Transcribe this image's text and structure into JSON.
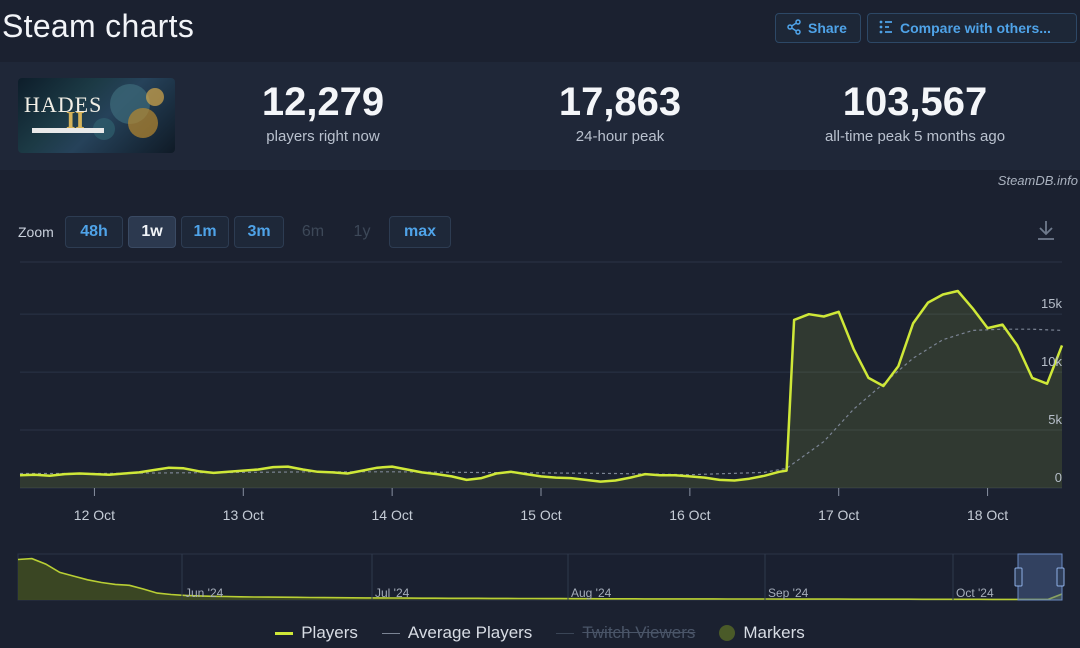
{
  "page_title": "Steam charts",
  "top_buttons": {
    "share": "Share",
    "compare": "Compare with others..."
  },
  "game": {
    "logo_text": "HADES",
    "numeral": "II"
  },
  "stats": [
    {
      "value": "12,279",
      "label": "players right now"
    },
    {
      "value": "17,863",
      "label": "24-hour peak"
    },
    {
      "value": "103,567",
      "label": "all-time peak 5 months ago"
    }
  ],
  "credit": "SteamDB.info",
  "zoom": {
    "label": "Zoom",
    "options": [
      {
        "label": "48h",
        "state": "enabled"
      },
      {
        "label": "1w",
        "state": "active"
      },
      {
        "label": "1m",
        "state": "enabled"
      },
      {
        "label": "3m",
        "state": "enabled"
      },
      {
        "label": "6m",
        "state": "disabled"
      },
      {
        "label": "1y",
        "state": "disabled"
      },
      {
        "label": "max",
        "state": "enabled"
      }
    ]
  },
  "icons": {
    "share": "share-icon",
    "compare": "compare-icon",
    "download": "download-icon"
  },
  "colors": {
    "players_line": "#cfe838",
    "average_line": "#7b8494",
    "link_blue": "#4fa3e8",
    "markers": "#4a5a28"
  },
  "legend": [
    {
      "label": "Players",
      "kind": "line",
      "color": "#cfe838",
      "enabled": true
    },
    {
      "label": "Average Players",
      "kind": "line",
      "color": "#7b8494",
      "enabled": true
    },
    {
      "label": "Twitch Viewers",
      "kind": "line",
      "color": "#4a5568",
      "enabled": false
    },
    {
      "label": "Markers",
      "kind": "dot",
      "color": "#4a5a28",
      "enabled": true
    }
  ],
  "chart_data": {
    "type": "area",
    "title": "",
    "x_unit": "day (October 2024)",
    "x_ticks": [
      "12 Oct",
      "13 Oct",
      "14 Oct",
      "15 Oct",
      "16 Oct",
      "17 Oct",
      "18 Oct"
    ],
    "x_tick_values": [
      12,
      13,
      14,
      15,
      16,
      17,
      18
    ],
    "xlim": [
      11.5,
      18.5
    ],
    "y_ticks": [
      "0",
      "5k",
      "10k",
      "15k"
    ],
    "y_tick_values": [
      0,
      5000,
      10000,
      15000
    ],
    "ylim": [
      0,
      19500
    ],
    "grid": true,
    "series": [
      {
        "name": "Players",
        "x": [
          11.5,
          11.6,
          11.7,
          11.8,
          11.9,
          12.0,
          12.1,
          12.2,
          12.3,
          12.4,
          12.5,
          12.6,
          12.7,
          12.8,
          12.9,
          13.0,
          13.1,
          13.2,
          13.3,
          13.4,
          13.5,
          13.6,
          13.7,
          13.8,
          13.9,
          14.0,
          14.1,
          14.2,
          14.3,
          14.4,
          14.5,
          14.6,
          14.7,
          14.8,
          14.9,
          15.0,
          15.1,
          15.2,
          15.3,
          15.4,
          15.5,
          15.6,
          15.7,
          15.8,
          15.9,
          16.0,
          16.1,
          16.2,
          16.3,
          16.4,
          16.5,
          16.6,
          16.65,
          16.7,
          16.8,
          16.9,
          17.0,
          17.1,
          17.2,
          17.3,
          17.4,
          17.5,
          17.6,
          17.7,
          17.8,
          17.9,
          18.0,
          18.1,
          18.2,
          18.3,
          18.4,
          18.5
        ],
        "values": [
          1100,
          1150,
          1050,
          1200,
          1250,
          1200,
          1150,
          1250,
          1350,
          1550,
          1750,
          1700,
          1450,
          1300,
          1400,
          1500,
          1600,
          1800,
          1850,
          1600,
          1400,
          1350,
          1250,
          1500,
          1750,
          1850,
          1600,
          1350,
          1200,
          1000,
          700,
          850,
          1250,
          1400,
          1200,
          1000,
          900,
          850,
          700,
          550,
          650,
          900,
          1200,
          1100,
          1100,
          1000,
          900,
          700,
          650,
          800,
          1050,
          1400,
          1500,
          14500,
          15000,
          14800,
          15200,
          12000,
          9500,
          8800,
          10500,
          14200,
          16000,
          16700,
          17000,
          15500,
          13800,
          14100,
          12300,
          9500,
          9000,
          12300
        ]
      },
      {
        "name": "Average Players",
        "x": [
          11.5,
          12.0,
          12.5,
          13.0,
          13.5,
          14.0,
          14.5,
          15.0,
          15.5,
          16.0,
          16.5,
          16.65,
          16.9,
          17.1,
          17.3,
          17.5,
          17.7,
          17.9,
          18.1,
          18.3,
          18.5
        ],
        "values": [
          1250,
          1250,
          1300,
          1350,
          1400,
          1400,
          1350,
          1300,
          1250,
          1150,
          1350,
          1700,
          4000,
          6800,
          9000,
          11200,
          12800,
          13600,
          13700,
          13700,
          13600
        ]
      }
    ],
    "navigator": {
      "x_ticks": [
        "Jun '24",
        "Jul '24",
        "Aug '24",
        "Sep '24",
        "Oct '24"
      ],
      "values": [
        88000,
        90000,
        78000,
        60000,
        52000,
        44000,
        38000,
        34000,
        32000,
        24000,
        15000,
        12000,
        10000,
        9000,
        8000,
        7500,
        7000,
        6600,
        6300,
        6000,
        5800,
        5500,
        5200,
        5000,
        4800,
        4600,
        4500,
        4300,
        4200,
        4000,
        3900,
        3800,
        3700,
        3600,
        3500,
        3400,
        3300,
        3200,
        3100,
        3000,
        2900,
        2800,
        2700,
        2700,
        2600,
        2500,
        2500,
        2400,
        2400,
        2300,
        2300,
        2200,
        2200,
        2100,
        2100,
        2000,
        2000,
        2000,
        1900,
        1900,
        1800,
        1800,
        1700,
        1700,
        1700,
        1600,
        1600,
        1500,
        1500,
        1500,
        1400,
        1400,
        1400,
        1300,
        1300,
        13000
      ],
      "ylim": [
        0,
        100000
      ],
      "selected_range": "last 1 week"
    }
  }
}
